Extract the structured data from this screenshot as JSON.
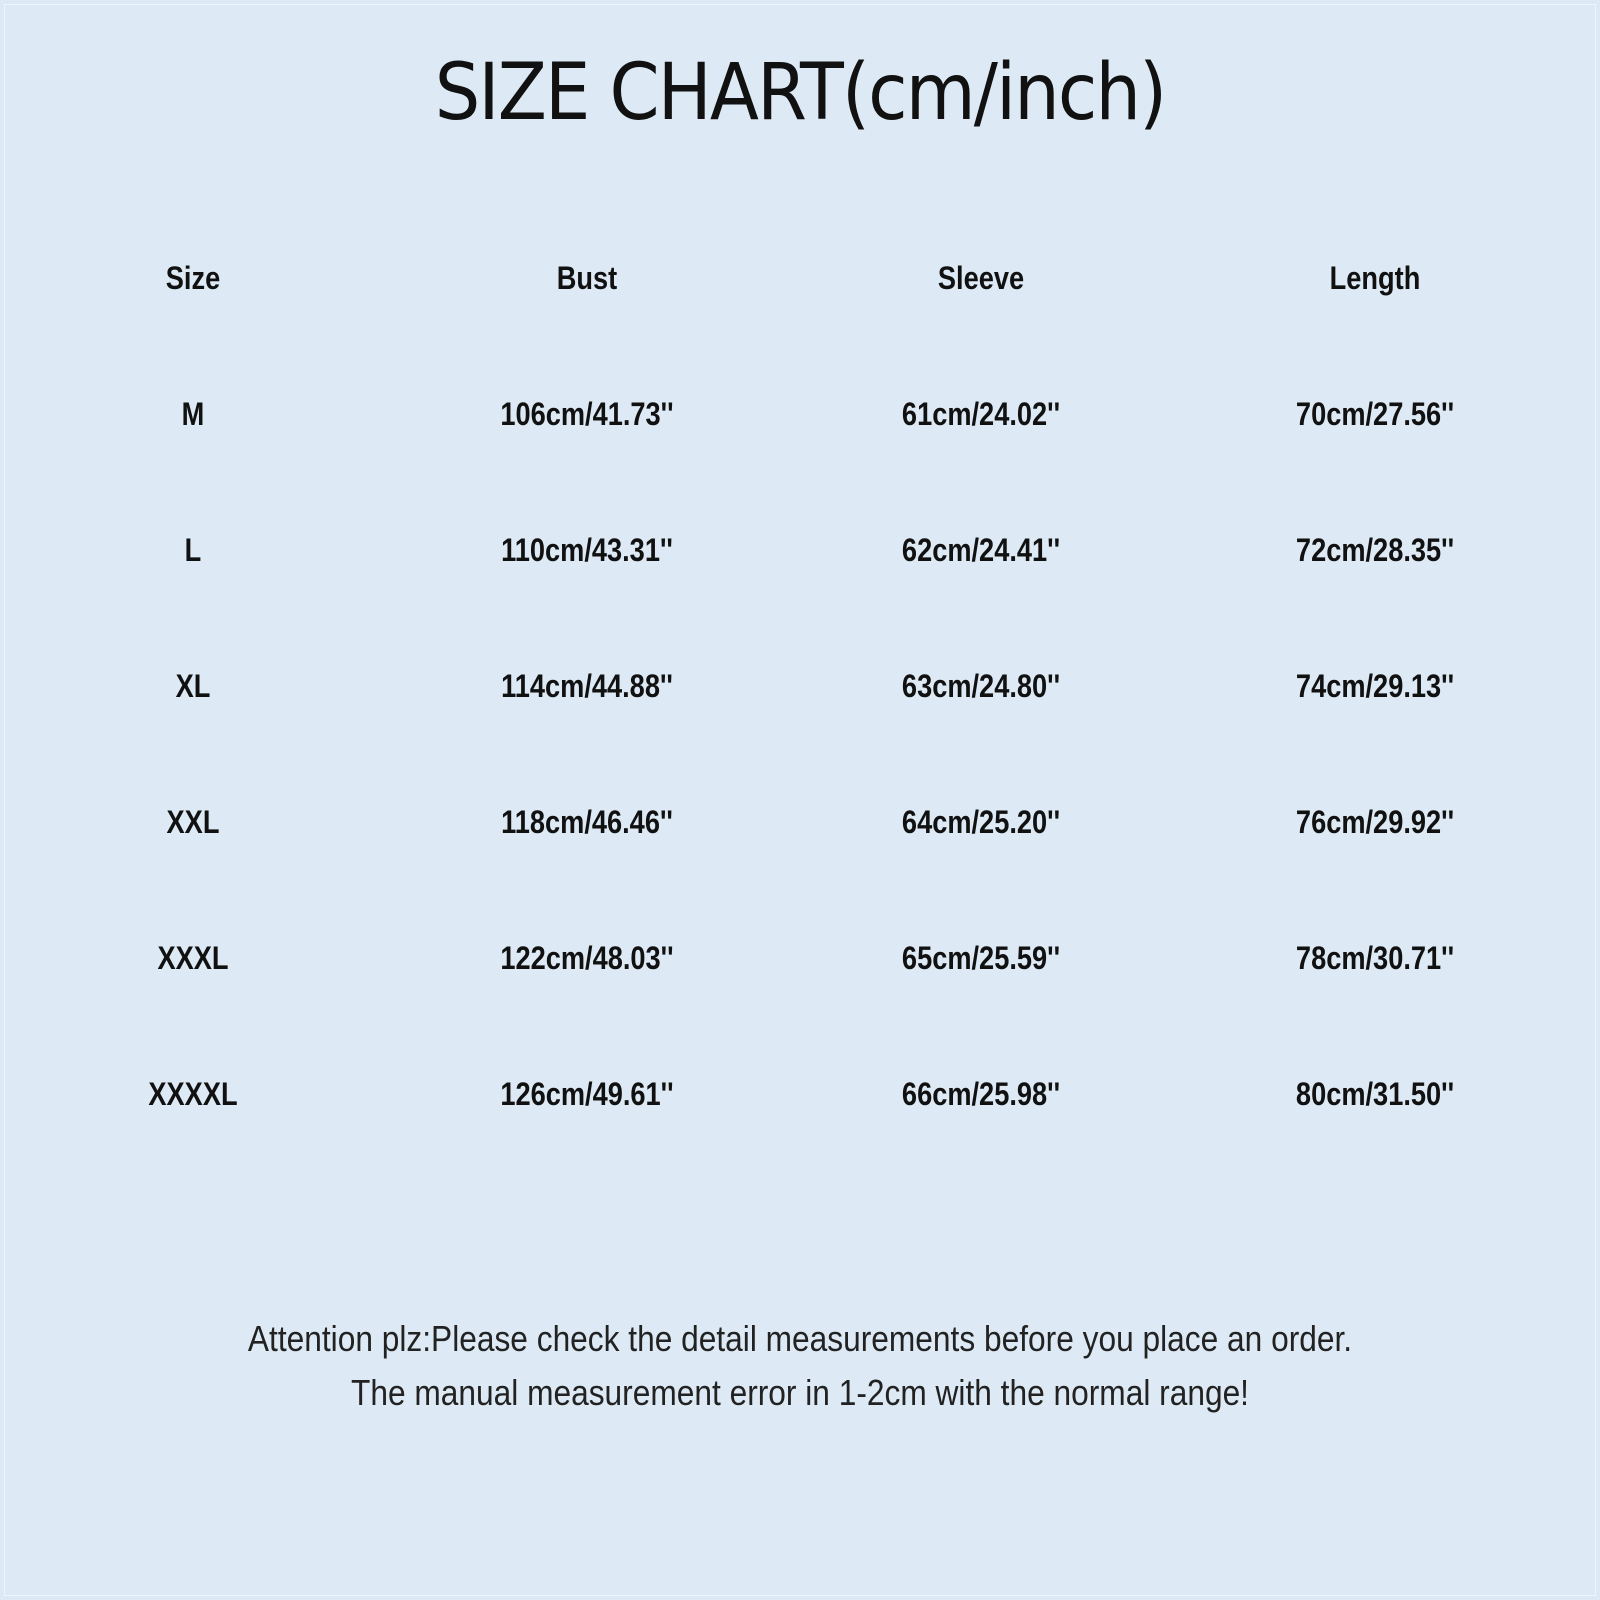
{
  "title": "SIZE CHART(cm/inch)",
  "table": {
    "headers": [
      "Size",
      "Bust",
      "Sleeve",
      "Length"
    ],
    "rows": [
      [
        "M",
        "106cm/41.73''",
        "61cm/24.02''",
        "70cm/27.56''"
      ],
      [
        "L",
        "110cm/43.31''",
        "62cm/24.41''",
        "72cm/28.35''"
      ],
      [
        "XL",
        "114cm/44.88''",
        "63cm/24.80''",
        "74cm/29.13''"
      ],
      [
        "XXL",
        "118cm/46.46''",
        "64cm/25.20''",
        "76cm/29.92''"
      ],
      [
        "XXXL",
        "122cm/48.03''",
        "65cm/25.59''",
        "78cm/30.71''"
      ],
      [
        "XXXXL",
        "126cm/49.61''",
        "66cm/25.98''",
        "80cm/31.50''"
      ]
    ]
  },
  "footer": {
    "line1": "Attention plz:Please check the detail measurements before you place an order.",
    "line2": "The manual measurement error in 1-2cm with the normal range!"
  },
  "colors": {
    "background": "#ddeaf5",
    "text": "#111111"
  }
}
